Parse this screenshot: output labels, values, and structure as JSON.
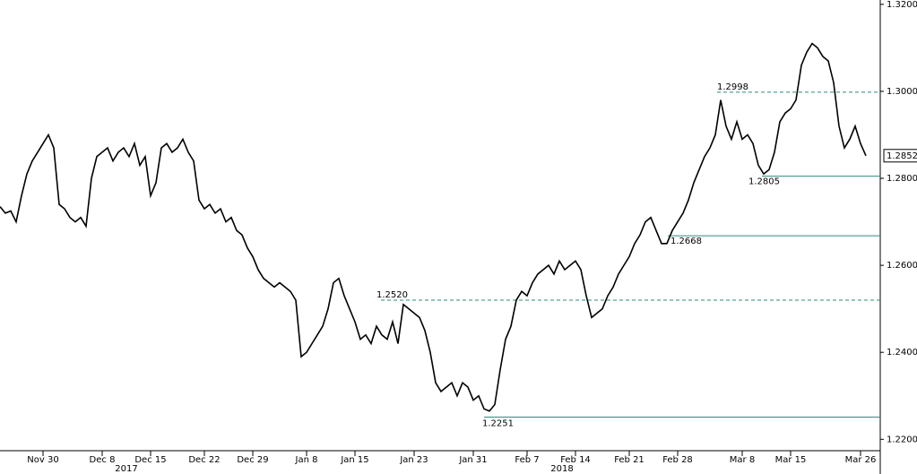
{
  "chart_data": {
    "type": "line",
    "categories": [
      null,
      null,
      null,
      null,
      null,
      null,
      null,
      null,
      "Nov 30",
      null,
      null,
      null,
      null,
      null,
      null,
      null,
      null,
      null,
      null,
      "Dec 8",
      null,
      null,
      null,
      null,
      null,
      null,
      null,
      null,
      "Dec 15",
      null,
      null,
      null,
      null,
      null,
      null,
      null,
      null,
      null,
      "Dec 22",
      null,
      null,
      null,
      null,
      null,
      null,
      null,
      null,
      "Dec 29",
      null,
      null,
      null,
      null,
      null,
      null,
      null,
      null,
      null,
      "Jan 8",
      null,
      null,
      null,
      null,
      null,
      null,
      null,
      null,
      "Jan 15",
      null,
      null,
      null,
      null,
      null,
      null,
      null,
      null,
      null,
      null,
      "Jan 23",
      null,
      null,
      null,
      null,
      null,
      null,
      null,
      null,
      null,
      null,
      "Jan 31",
      null,
      null,
      null,
      null,
      null,
      null,
      null,
      null,
      null,
      "Feb 7",
      null,
      null,
      null,
      null,
      null,
      null,
      null,
      null,
      "Feb 14",
      null,
      null,
      null,
      null,
      null,
      null,
      null,
      null,
      null,
      "Feb 21",
      null,
      null,
      null,
      null,
      null,
      null,
      null,
      null,
      "Feb 28",
      null,
      null,
      null,
      null,
      null,
      null,
      null,
      null,
      null,
      null,
      null,
      "Mar 8",
      null,
      null,
      null,
      null,
      null,
      null,
      null,
      null,
      "Mar 15",
      null,
      null,
      null,
      null,
      null,
      null,
      null,
      null,
      null,
      null,
      null,
      null,
      "Mar 26",
      null
    ],
    "years": [
      "2017",
      "2018"
    ],
    "series": [
      {
        "color": "#000000",
        "values": [
          1.2735,
          1.272,
          1.2725,
          1.27,
          1.276,
          1.281,
          1.284,
          1.286,
          1.288,
          1.29,
          1.287,
          1.274,
          1.273,
          1.271,
          1.27,
          1.271,
          1.269,
          1.28,
          1.285,
          1.286,
          1.287,
          1.284,
          1.286,
          1.287,
          1.285,
          1.288,
          1.283,
          1.285,
          1.276,
          1.279,
          1.287,
          1.288,
          1.286,
          1.287,
          1.289,
          1.286,
          1.284,
          1.275,
          1.273,
          1.274,
          1.272,
          1.273,
          1.27,
          1.271,
          1.268,
          1.267,
          1.264,
          1.262,
          1.259,
          1.257,
          1.256,
          1.255,
          1.256,
          1.255,
          1.254,
          1.252,
          1.239,
          1.24,
          1.242,
          1.244,
          1.246,
          1.25,
          1.256,
          1.257,
          1.253,
          1.25,
          1.247,
          1.243,
          1.244,
          1.242,
          1.246,
          1.244,
          1.243,
          1.247,
          1.242,
          1.251,
          1.25,
          1.249,
          1.248,
          1.245,
          1.24,
          1.233,
          1.231,
          1.232,
          1.233,
          1.23,
          1.233,
          1.232,
          1.229,
          1.23,
          1.227,
          1.2265,
          1.228,
          1.236,
          1.243,
          1.246,
          1.252,
          1.254,
          1.253,
          1.256,
          1.258,
          1.259,
          1.26,
          1.258,
          1.261,
          1.259,
          1.26,
          1.261,
          1.259,
          1.253,
          1.248,
          1.249,
          1.25,
          1.253,
          1.255,
          1.258,
          1.26,
          1.262,
          1.265,
          1.267,
          1.27,
          1.271,
          1.268,
          1.265,
          1.265,
          1.268,
          1.27,
          1.272,
          1.275,
          1.279,
          1.282,
          1.285,
          1.287,
          1.29,
          1.298,
          1.292,
          1.289,
          1.293,
          1.289,
          1.29,
          1.288,
          1.283,
          1.281,
          1.282,
          1.286,
          1.293,
          1.295,
          1.296,
          1.298,
          1.306,
          1.309,
          1.311,
          1.31,
          1.308,
          1.307,
          1.302,
          1.292,
          1.287,
          1.289,
          1.292,
          1.288,
          1.2852
        ]
      }
    ],
    "ylim": [
      1.218,
      1.321
    ],
    "yticks": [
      {
        "value": 1.22,
        "label": "1.2200"
      },
      {
        "value": 1.24,
        "label": "1.2400"
      },
      {
        "value": 1.26,
        "label": "1.2600"
      },
      {
        "value": 1.28,
        "label": "1.2800"
      },
      {
        "value": 1.3,
        "label": "1.3000"
      },
      {
        "value": 1.32,
        "label": "1.3200"
      }
    ],
    "annotations": [
      {
        "value": 1.2998,
        "label": "1.2998",
        "style": "dashed"
      },
      {
        "value": 1.2805,
        "label": "1.2805",
        "style": "solid"
      },
      {
        "value": 1.2668,
        "label": "1.2668",
        "style": "solid"
      },
      {
        "value": 1.252,
        "label": "1.2520",
        "style": "dashed"
      },
      {
        "value": 1.2251,
        "label": "1.2251",
        "style": "solid"
      }
    ],
    "annotation_color": "#2e8b7a",
    "grid": false
  }
}
